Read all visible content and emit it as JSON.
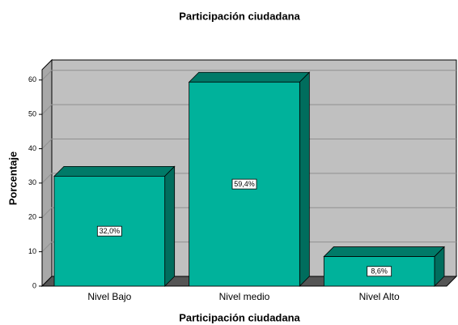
{
  "chart_data": {
    "type": "bar",
    "title": "Participación ciudadana",
    "x_label": "Participación ciudadana",
    "y_label": "Porcentaje",
    "categories": [
      "Nivel Bajo",
      "Nivel medio",
      "Nivel Alto"
    ],
    "values": [
      32.0,
      59.4,
      8.6
    ],
    "value_labels": [
      "32,0%",
      "59,4%",
      "8,6%"
    ],
    "color": "#00b29b",
    "ylim": [
      0,
      63
    ],
    "yticks": [
      0,
      10,
      20,
      30,
      40,
      50,
      60
    ],
    "grid": true
  }
}
